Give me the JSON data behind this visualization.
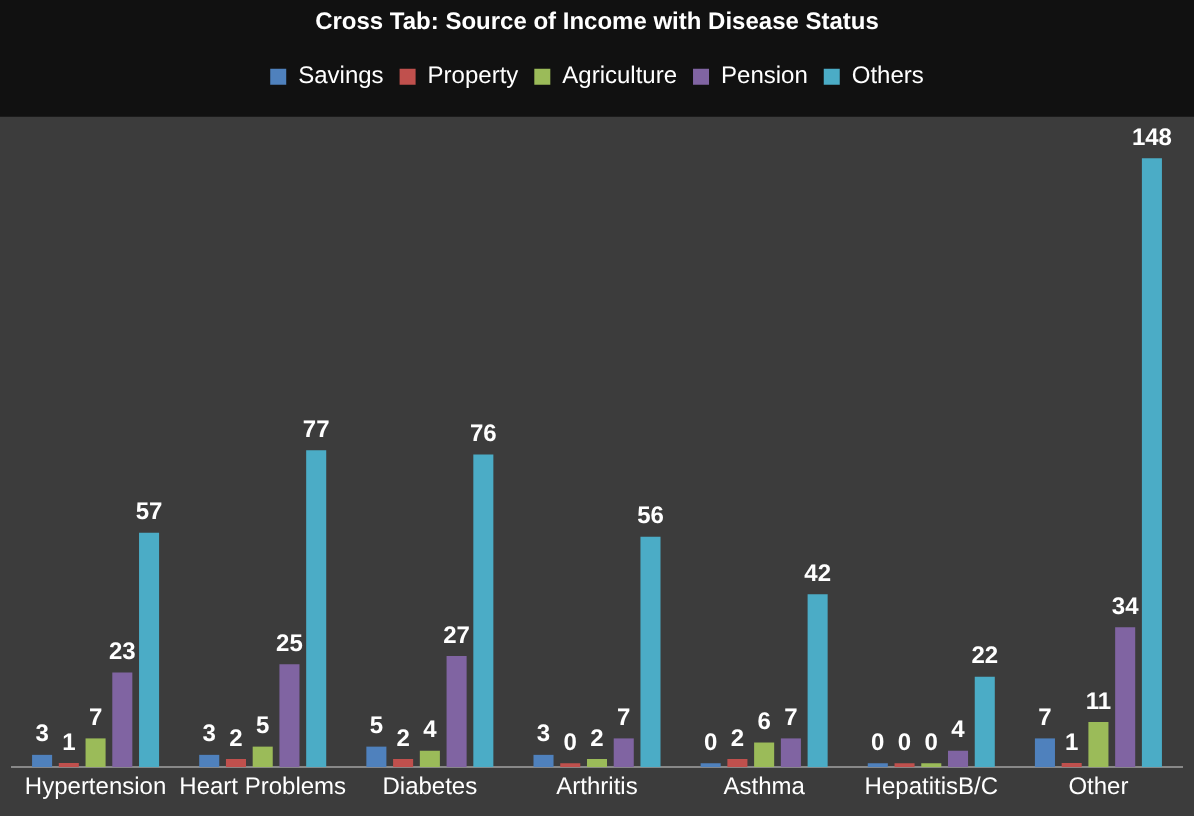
{
  "chart_data": {
    "type": "bar",
    "title": "Cross Tab: Source of Income with Disease Status",
    "categories": [
      "Hypertension",
      "Heart Problems",
      "Diabetes",
      "Arthritis",
      "Asthma",
      "HepatitisB/C",
      "Other"
    ],
    "series": [
      {
        "name": "Savings",
        "color": "#4f81bd",
        "values": [
          3,
          3,
          5,
          3,
          0,
          0,
          7
        ]
      },
      {
        "name": "Property",
        "color": "#c0504d",
        "values": [
          1,
          2,
          2,
          0,
          2,
          0,
          1
        ]
      },
      {
        "name": "Agriculture",
        "color": "#9bbb59",
        "values": [
          7,
          5,
          4,
          2,
          6,
          0,
          11
        ]
      },
      {
        "name": "Pension",
        "color": "#8064a2",
        "values": [
          23,
          25,
          27,
          7,
          7,
          4,
          34
        ]
      },
      {
        "name": "Others",
        "color": "#4bacc6",
        "values": [
          57,
          77,
          76,
          56,
          42,
          22,
          148
        ]
      }
    ],
    "data_labels": true,
    "legend": "top",
    "grid": false
  }
}
